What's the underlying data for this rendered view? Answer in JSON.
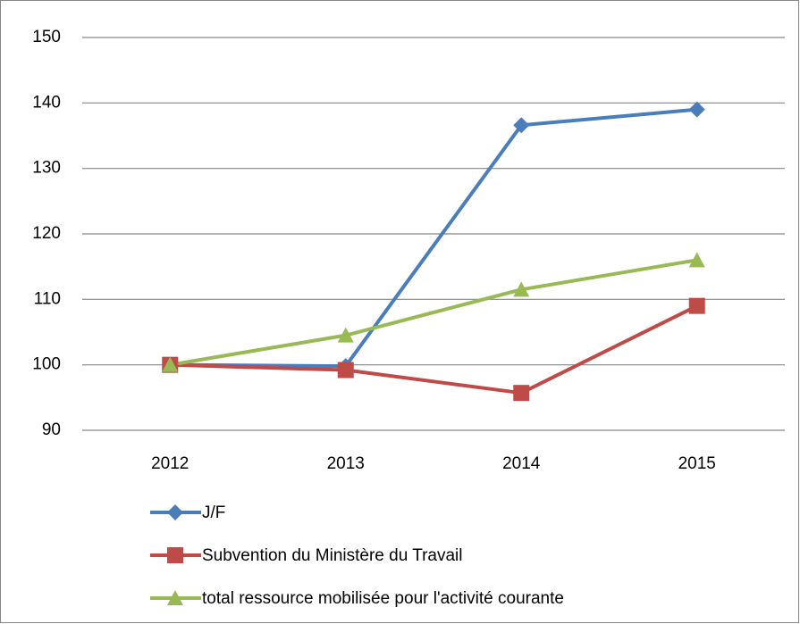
{
  "chart_data": {
    "type": "line",
    "categories": [
      "2012",
      "2013",
      "2014",
      "2015"
    ],
    "series": [
      {
        "name": "J/F",
        "color": "#4a7ebb",
        "marker": "diamond",
        "values": [
          100,
          99.8,
          136.6,
          139
        ]
      },
      {
        "name": "Subvention du Ministère du Travail",
        "color": "#be4b48",
        "marker": "square",
        "values": [
          100,
          99.2,
          95.7,
          109
        ]
      },
      {
        "name": "total ressource mobilisée pour l'activité courante",
        "color": "#98b954",
        "marker": "triangle",
        "values": [
          100,
          104.5,
          111.5,
          116
        ]
      }
    ],
    "ylim": [
      90,
      150
    ],
    "yticks": [
      90,
      100,
      110,
      120,
      130,
      140,
      150
    ],
    "grid": true,
    "legend": "bottom"
  }
}
